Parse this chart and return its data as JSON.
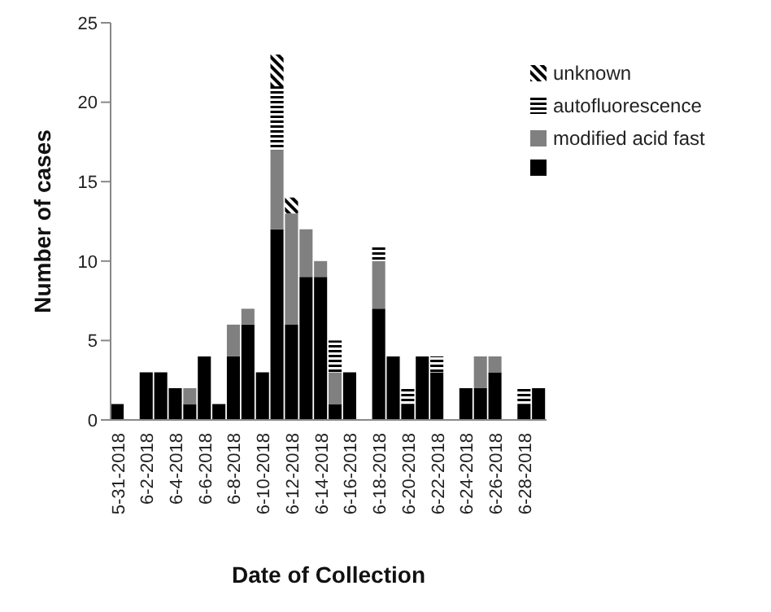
{
  "chart_data": {
    "type": "bar",
    "stacked": true,
    "xlabel": "Date of Collection",
    "ylabel": "Number of cases",
    "categories": [
      "5-31-2018",
      null,
      "6-2-2018",
      null,
      "6-4-2018",
      null,
      "6-6-2018",
      null,
      "6-8-2018",
      null,
      "6-10-2018",
      null,
      "6-12-2018",
      null,
      "6-14-2018",
      null,
      "6-16-2018",
      null,
      "6-18-2018",
      null,
      "6-20-2018",
      null,
      "6-22-2018",
      null,
      "6-24-2018",
      null,
      "6-26-2018",
      null,
      "6-28-2018",
      null
    ],
    "series": [
      {
        "color": "#000000",
        "values": [
          1,
          0,
          3,
          3,
          2,
          1,
          4,
          1,
          4,
          6,
          3,
          12,
          6,
          9,
          9,
          1,
          3,
          0,
          7,
          4,
          1,
          4,
          3,
          0,
          2,
          2,
          3,
          0,
          1,
          2
        ]
      },
      {
        "name": "modified acid fast",
        "color": "#808080",
        "values": [
          0,
          0,
          0,
          0,
          0,
          1,
          0,
          0,
          2,
          1,
          0,
          5,
          7,
          3,
          1,
          2,
          0,
          0,
          3,
          0,
          0,
          0,
          0,
          0,
          0,
          2,
          1,
          0,
          0,
          0
        ]
      },
      {
        "name": "autofluorescence",
        "color": "#000000",
        "values": [
          0,
          0,
          0,
          0,
          0,
          0,
          0,
          0,
          0,
          0,
          0,
          4,
          0,
          0,
          0,
          2,
          0,
          0,
          1,
          0,
          1,
          0,
          1,
          0,
          0,
          0,
          0,
          0,
          1,
          0
        ]
      },
      {
        "name": "unknown",
        "color": "#000000",
        "values": [
          0,
          0,
          0,
          0,
          0,
          0,
          0,
          0,
          0,
          0,
          0,
          2,
          1,
          0,
          0,
          0,
          0,
          0,
          0,
          0,
          0,
          0,
          0,
          0,
          0,
          0,
          0,
          0,
          0,
          0
        ]
      }
    ],
    "ylim": [
      0,
      25
    ],
    "yticks": [
      0,
      5,
      10,
      15,
      20,
      25
    ],
    "grid": false,
    "legend": "top right"
  }
}
